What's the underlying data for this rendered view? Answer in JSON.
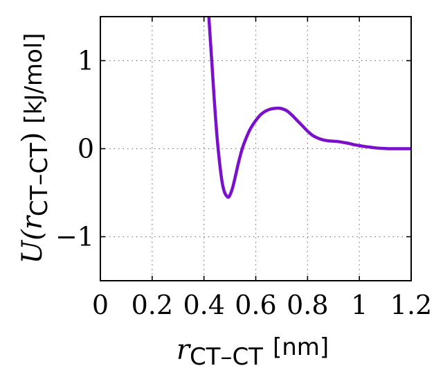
{
  "chart_data": {
    "type": "line",
    "title": "",
    "xlabel": {
      "symbol": "r",
      "subscript": "CT–CT",
      "unit": "[nm]"
    },
    "ylabel": {
      "prefix": "U(",
      "symbol": "r",
      "subscript": "CT–CT",
      "suffix": ")",
      "unit": "[kJ/mol]"
    },
    "xlim": [
      0,
      1.2
    ],
    "ylim": [
      -1.5,
      1.5
    ],
    "xticks": [
      0,
      0.2,
      0.4,
      0.6,
      0.8,
      1.0,
      1.2
    ],
    "xtick_labels": [
      "0",
      "0.2",
      "0.4",
      "0.6",
      "0.8",
      "1",
      "1.2"
    ],
    "yticks": [
      -1,
      0,
      1
    ],
    "ytick_labels": [
      "−1",
      "0",
      "1"
    ],
    "grid": true,
    "legend": "none",
    "color": "#7a10cc",
    "series": [
      {
        "x": [
          0.415,
          0.42,
          0.43,
          0.44,
          0.45,
          0.46,
          0.47,
          0.48,
          0.49,
          0.495,
          0.5,
          0.51,
          0.52,
          0.53,
          0.54,
          0.55,
          0.56,
          0.57,
          0.58,
          0.6,
          0.62,
          0.64,
          0.66,
          0.68,
          0.69,
          0.7,
          0.72,
          0.74,
          0.76,
          0.78,
          0.8,
          0.82,
          0.84,
          0.86,
          0.88,
          0.9,
          0.92,
          0.94,
          0.96,
          0.98,
          1.0,
          1.02,
          1.04,
          1.06,
          1.08,
          1.1,
          1.12,
          1.15,
          1.18,
          1.2
        ],
        "y": [
          1.8,
          1.45,
          1.0,
          0.55,
          0.15,
          -0.15,
          -0.38,
          -0.5,
          -0.545,
          -0.55,
          -0.53,
          -0.45,
          -0.33,
          -0.2,
          -0.08,
          0.02,
          0.1,
          0.17,
          0.23,
          0.32,
          0.39,
          0.43,
          0.452,
          0.46,
          0.46,
          0.455,
          0.43,
          0.38,
          0.32,
          0.26,
          0.2,
          0.15,
          0.12,
          0.1,
          0.09,
          0.085,
          0.08,
          0.07,
          0.06,
          0.045,
          0.035,
          0.025,
          0.018,
          0.01,
          0.005,
          0.002,
          0.0,
          0.0,
          0.0,
          0.0
        ]
      }
    ]
  }
}
